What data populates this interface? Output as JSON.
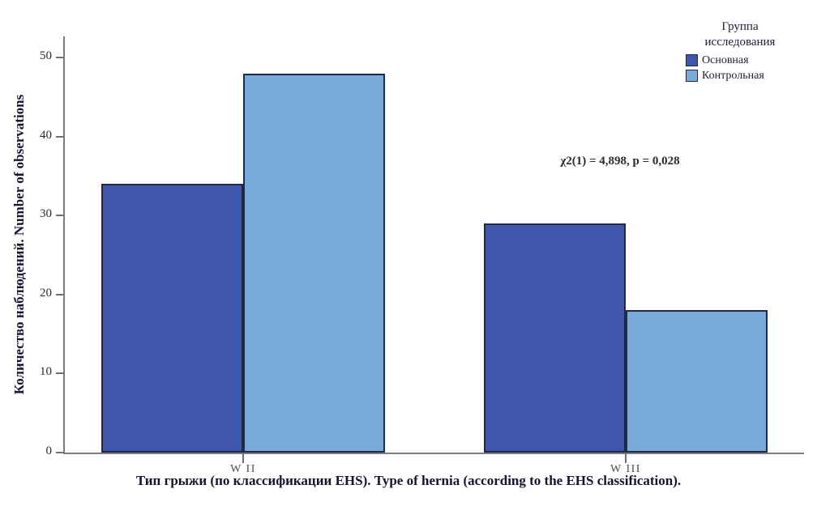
{
  "chart_data": {
    "type": "bar",
    "categories": [
      "W II",
      "W III"
    ],
    "series": [
      {
        "name": "Основная",
        "color": "#3e56ab",
        "values": [
          34,
          29
        ]
      },
      {
        "name": "Контрольная",
        "color": "#7aaad8",
        "values": [
          48,
          18
        ]
      }
    ],
    "title": "",
    "xlabel": "Тип грыжи (по классификации EHS). Type of hernia (according to the EHS classification).",
    "ylabel": "Количество наблюдений. Number of observations",
    "ylim": [
      0,
      50
    ],
    "yticks": [
      0,
      10,
      20,
      30,
      40,
      50
    ],
    "grid": false,
    "legend_position": "top-right",
    "annotation": "χ2(1) = 4,898, p = 0,028"
  },
  "legend": {
    "title": "Группа\nисследования",
    "items": [
      {
        "label": "Основная",
        "color": "#3e56ab"
      },
      {
        "label": "Контрольная",
        "color": "#7aaad8"
      }
    ]
  },
  "colors": {
    "axis": "#7b7b7b",
    "bar_border": "#202a45",
    "text_dark": "#14142e"
  }
}
